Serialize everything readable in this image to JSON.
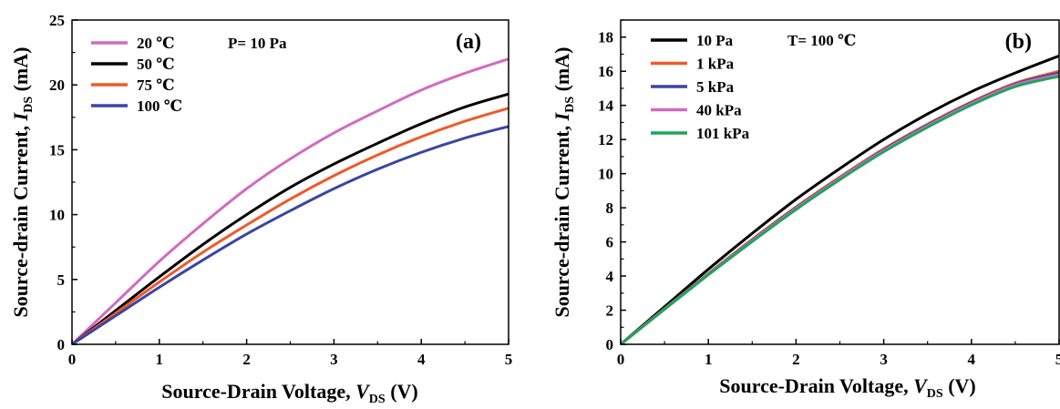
{
  "chart_data": [
    {
      "type": "line",
      "panel_label": "(a)",
      "condition": "P= 10 Pa",
      "xlabel": {
        "main": "Source-Drain Voltage, ",
        "var": "V",
        "sub": "DS",
        "unit": " (V)"
      },
      "ylabel": {
        "main": "Source-drain Current, ",
        "var": "I",
        "sub": "DS",
        "unit": " (mA)"
      },
      "xlim": [
        0,
        5
      ],
      "ylim": [
        0,
        25
      ],
      "xticks": [
        "0",
        "1",
        "2",
        "3",
        "4",
        "5"
      ],
      "yticks": [
        "0",
        "5",
        "10",
        "15",
        "20",
        "25"
      ],
      "grid": false,
      "legend_position": "top-left",
      "x": [
        0,
        0.5,
        1,
        1.5,
        2,
        2.5,
        3,
        3.5,
        4,
        4.5,
        5
      ],
      "series": [
        {
          "name": "20 ℃",
          "color": "#d16bc0",
          "values": [
            0,
            3.2,
            6.4,
            9.3,
            12.0,
            14.3,
            16.3,
            18.0,
            19.6,
            20.9,
            22.0
          ]
        },
        {
          "name": "50 ℃",
          "color": "#000000",
          "values": [
            0,
            2.6,
            5.2,
            7.7,
            10.0,
            12.1,
            13.9,
            15.5,
            17.0,
            18.3,
            19.3
          ]
        },
        {
          "name": "75 ℃",
          "color": "#f05a28",
          "values": [
            0,
            2.4,
            4.8,
            7.1,
            9.2,
            11.2,
            13.0,
            14.6,
            16.0,
            17.2,
            18.2
          ]
        },
        {
          "name": "100 ℃",
          "color": "#3a45a3",
          "values": [
            0,
            2.2,
            4.4,
            6.5,
            8.5,
            10.3,
            12.0,
            13.5,
            14.8,
            15.9,
            16.8
          ]
        }
      ]
    },
    {
      "type": "line",
      "panel_label": "(b)",
      "condition": "T= 100 ℃",
      "xlabel": {
        "main": "Source-Drain Voltage, ",
        "var": "V",
        "sub": "DS",
        "unit": " (V)"
      },
      "ylabel": {
        "main": "Source-drain Current, ",
        "var": "I",
        "sub": "DS",
        "unit": " (mA)"
      },
      "xlim": [
        0,
        5
      ],
      "ylim": [
        0,
        19
      ],
      "xticks": [
        "0",
        "1",
        "2",
        "3",
        "4",
        "5"
      ],
      "yticks": [
        "0",
        "2",
        "4",
        "6",
        "8",
        "10",
        "12",
        "14",
        "16",
        "18"
      ],
      "grid": false,
      "legend_position": "top-left",
      "x": [
        0,
        0.5,
        1,
        1.5,
        2,
        2.5,
        3,
        3.5,
        4,
        4.5,
        5
      ],
      "series": [
        {
          "name": "10 Pa",
          "color": "#000000",
          "values": [
            0,
            2.2,
            4.4,
            6.5,
            8.5,
            10.3,
            12.0,
            13.5,
            14.8,
            15.9,
            16.9
          ]
        },
        {
          "name": "1 kPa",
          "color": "#f05a28",
          "values": [
            0,
            2.1,
            4.15,
            6.15,
            8.05,
            9.8,
            11.45,
            12.9,
            14.2,
            15.3,
            16.0
          ]
        },
        {
          "name": "5 kPa",
          "color": "#3a45a3",
          "values": [
            0,
            2.08,
            4.12,
            6.1,
            8.0,
            9.75,
            11.4,
            12.85,
            14.15,
            15.25,
            15.9
          ]
        },
        {
          "name": "40 kPa",
          "color": "#d16bc0",
          "values": [
            0,
            2.06,
            4.1,
            6.07,
            7.96,
            9.72,
            11.35,
            12.8,
            14.1,
            15.2,
            15.8
          ]
        },
        {
          "name": "101 kPa",
          "color": "#1fa55a",
          "values": [
            0,
            2.05,
            4.07,
            6.02,
            7.9,
            9.65,
            11.28,
            12.72,
            14.02,
            15.1,
            15.7
          ]
        }
      ]
    }
  ]
}
